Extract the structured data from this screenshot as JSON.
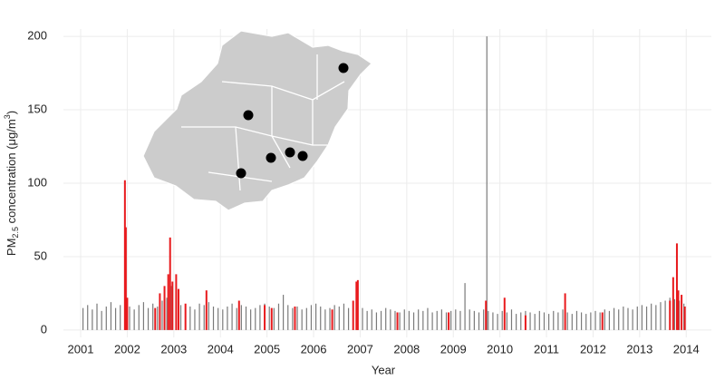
{
  "chart_data": {
    "type": "bar",
    "x_label": "Year",
    "y_label": {
      "main": "PM",
      "sub": "2.5",
      "rest": " concentration (μg/m",
      "sup": "3",
      "end": ")"
    },
    "xlim": [
      2000.63,
      2014.54
    ],
    "xticks": [
      2001,
      2002,
      2003,
      2004,
      2005,
      2006,
      2007,
      2008,
      2009,
      2010,
      2011,
      2012,
      2013,
      2014
    ],
    "ylim": [
      -5,
      205
    ],
    "yticks": [
      0,
      50,
      100,
      150,
      200
    ],
    "grid": true,
    "series": [
      {
        "color": "#7a7a7a",
        "width": 1.2,
        "x": [
          2001.05,
          2001.15,
          2001.25,
          2001.35,
          2001.45,
          2001.55,
          2001.65,
          2001.75,
          2001.85,
          2001.95,
          2002.05,
          2002.15,
          2002.25,
          2002.35,
          2002.45,
          2002.55,
          2002.65,
          2002.75,
          2002.85,
          2002.95,
          2003.05,
          2003.15,
          2003.25,
          2003.35,
          2003.45,
          2003.55,
          2003.65,
          2003.75,
          2003.85,
          2003.95,
          2004.05,
          2004.15,
          2004.25,
          2004.35,
          2004.45,
          2004.55,
          2004.65,
          2004.75,
          2004.85,
          2004.95,
          2005.05,
          2005.15,
          2005.25,
          2005.35,
          2005.45,
          2005.55,
          2005.65,
          2005.75,
          2005.85,
          2005.95,
          2006.05,
          2006.15,
          2006.25,
          2006.35,
          2006.45,
          2006.55,
          2006.65,
          2006.75,
          2006.85,
          2006.95,
          2007.05,
          2007.15,
          2007.25,
          2007.35,
          2007.45,
          2007.55,
          2007.65,
          2007.75,
          2007.85,
          2007.95,
          2008.05,
          2008.15,
          2008.25,
          2008.35,
          2008.45,
          2008.55,
          2008.65,
          2008.75,
          2008.85,
          2008.95,
          2009.05,
          2009.15,
          2009.25,
          2009.35,
          2009.45,
          2009.55,
          2009.65,
          2009.75,
          2009.85,
          2009.95,
          2010.05,
          2010.15,
          2010.25,
          2010.35,
          2010.45,
          2010.55,
          2010.65,
          2010.75,
          2010.85,
          2010.95,
          2011.05,
          2011.15,
          2011.25,
          2011.35,
          2011.45,
          2011.55,
          2011.65,
          2011.75,
          2011.85,
          2011.95,
          2012.05,
          2012.15,
          2012.25,
          2012.35,
          2012.45,
          2012.55,
          2012.65,
          2012.75,
          2012.85,
          2012.95,
          2013.05,
          2013.15,
          2013.25,
          2013.35,
          2013.45,
          2013.55,
          2013.65,
          2013.75,
          2013.85,
          2013.95,
          2009.72
        ],
        "values": [
          15,
          17,
          14,
          18,
          13,
          16,
          19,
          15,
          17,
          18,
          16,
          14,
          17,
          19,
          15,
          18,
          16,
          20,
          22,
          30,
          18,
          17,
          15,
          16,
          14,
          18,
          17,
          19,
          16,
          15,
          14,
          16,
          18,
          15,
          17,
          16,
          14,
          15,
          17,
          18,
          16,
          15,
          18,
          24,
          17,
          15,
          16,
          14,
          15,
          17,
          18,
          16,
          14,
          15,
          17,
          16,
          18,
          15,
          16,
          14,
          15,
          13,
          14,
          12,
          13,
          15,
          14,
          13,
          12,
          14,
          13,
          12,
          14,
          13,
          15,
          12,
          13,
          14,
          12,
          13,
          14,
          13,
          32,
          14,
          13,
          12,
          14,
          13,
          12,
          11,
          13,
          12,
          14,
          11,
          12,
          13,
          12,
          11,
          13,
          12,
          11,
          13,
          12,
          14,
          12,
          11,
          13,
          12,
          11,
          12,
          13,
          12,
          14,
          13,
          15,
          14,
          16,
          15,
          14,
          16,
          17,
          16,
          18,
          17,
          19,
          20,
          22,
          21,
          20,
          18,
          200
        ]
      },
      {
        "color": "#e8191c",
        "width": 2,
        "x": [
          2001.95,
          2001.97,
          2002.0,
          2002.6,
          2002.7,
          2002.8,
          2002.88,
          2002.92,
          2002.97,
          2003.05,
          2003.1,
          2003.25,
          2003.7,
          2004.4,
          2004.95,
          2005.1,
          2005.6,
          2006.4,
          2006.85,
          2006.92,
          2006.95,
          2007.8,
          2008.9,
          2009.7,
          2010.1,
          2010.55,
          2011.4,
          2012.2,
          2013.65,
          2013.72,
          2013.8,
          2013.83,
          2013.9,
          2013.97
        ],
        "values": [
          102,
          70,
          22,
          15,
          25,
          30,
          38,
          63,
          33,
          38,
          28,
          18,
          27,
          20,
          17,
          15,
          16,
          14,
          20,
          33,
          34,
          12,
          12,
          20,
          22,
          10,
          25,
          12,
          20,
          36,
          59,
          27,
          24,
          16
        ]
      }
    ]
  }
}
